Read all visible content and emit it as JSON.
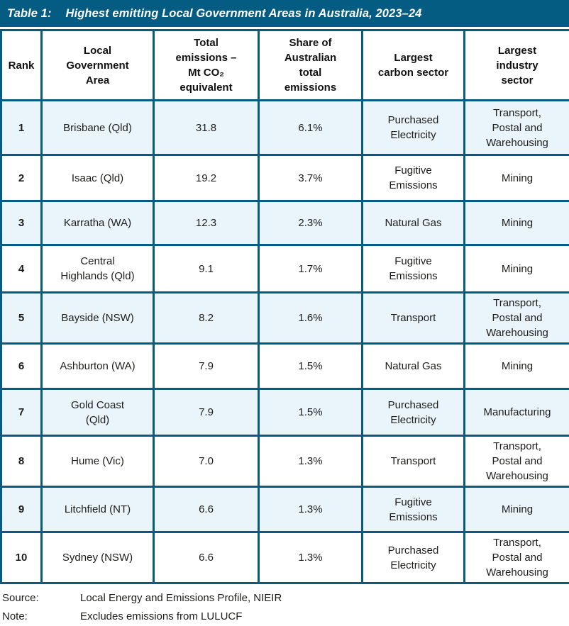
{
  "title": {
    "label": "Table 1:",
    "text": "Highest emitting Local Government Areas in Australia, 2023–24"
  },
  "colors": {
    "accent_teal": "#055C82",
    "alt_row_blue": "#E9F4FB",
    "title_text": "#FFFFFF",
    "body_text": "#1D1D1B"
  },
  "table": {
    "headers": [
      "Rank",
      "Local\nGovernment\nArea",
      "Total\nemissions –\nMt CO₂\nequivalent",
      "Share of\nAustralian\ntotal\nemissions",
      "Largest\ncarbon sector",
      "Largest\nindustry\nsector"
    ],
    "rows": [
      {
        "rank": "1",
        "lga": "Brisbane (Qld)",
        "emissions": "31.8",
        "share": "6.1%",
        "carbon_sector": "Purchased\nElectricity",
        "industry_sector": "Transport,\nPostal and\nWarehousing"
      },
      {
        "rank": "2",
        "lga": "Isaac (Qld)",
        "emissions": "19.2",
        "share": "3.7%",
        "carbon_sector": "Fugitive\nEmissions",
        "industry_sector": "Mining"
      },
      {
        "rank": "3",
        "lga": "Karratha (WA)",
        "emissions": "12.3",
        "share": "2.3%",
        "carbon_sector": "Natural Gas",
        "industry_sector": "Mining"
      },
      {
        "rank": "4",
        "lga": "Central\nHighlands (Qld)",
        "emissions": "9.1",
        "share": "1.7%",
        "carbon_sector": "Fugitive\nEmissions",
        "industry_sector": "Mining"
      },
      {
        "rank": "5",
        "lga": "Bayside (NSW)",
        "emissions": "8.2",
        "share": "1.6%",
        "carbon_sector": "Transport",
        "industry_sector": "Transport,\nPostal and\nWarehousing"
      },
      {
        "rank": "6",
        "lga": "Ashburton (WA)",
        "emissions": "7.9",
        "share": "1.5%",
        "carbon_sector": "Natural Gas",
        "industry_sector": "Mining"
      },
      {
        "rank": "7",
        "lga": "Gold Coast\n(Qld)",
        "emissions": "7.9",
        "share": "1.5%",
        "carbon_sector": "Purchased\nElectricity",
        "industry_sector": "Manufacturing"
      },
      {
        "rank": "8",
        "lga": "Hume (Vic)",
        "emissions": "7.0",
        "share": "1.3%",
        "carbon_sector": "Transport",
        "industry_sector": "Transport,\nPostal and\nWarehousing"
      },
      {
        "rank": "9",
        "lga": "Litchfield (NT)",
        "emissions": "6.6",
        "share": "1.3%",
        "carbon_sector": "Fugitive\nEmissions",
        "industry_sector": "Mining"
      },
      {
        "rank": "10",
        "lga": "Sydney (NSW)",
        "emissions": "6.6",
        "share": "1.3%",
        "carbon_sector": "Purchased\nElectricity",
        "industry_sector": "Transport,\nPostal and\nWarehousing"
      }
    ]
  },
  "footer": {
    "source_label": "Source:",
    "source_text": "Local Energy and Emissions Profile, NIEIR",
    "note_label": "Note:",
    "note_text": "Excludes emissions from LULUCF"
  },
  "chart_data": {
    "type": "table",
    "title": "Table 1: Highest emitting Local Government Areas in Australia, 2023–24",
    "columns": [
      "Rank",
      "Local Government Area",
      "Total emissions – Mt CO₂ equivalent",
      "Share of Australian total emissions",
      "Largest carbon sector",
      "Largest industry sector"
    ],
    "rows": [
      [
        1,
        "Brisbane (Qld)",
        31.8,
        "6.1%",
        "Purchased Electricity",
        "Transport, Postal and Warehousing"
      ],
      [
        2,
        "Isaac (Qld)",
        19.2,
        "3.7%",
        "Fugitive Emissions",
        "Mining"
      ],
      [
        3,
        "Karratha (WA)",
        12.3,
        "2.3%",
        "Natural Gas",
        "Mining"
      ],
      [
        4,
        "Central Highlands (Qld)",
        9.1,
        "1.7%",
        "Fugitive Emissions",
        "Mining"
      ],
      [
        5,
        "Bayside (NSW)",
        8.2,
        "1.6%",
        "Transport",
        "Transport, Postal and Warehousing"
      ],
      [
        6,
        "Ashburton (WA)",
        7.9,
        "1.5%",
        "Natural Gas",
        "Mining"
      ],
      [
        7,
        "Gold Coast (Qld)",
        7.9,
        "1.5%",
        "Purchased Electricity",
        "Manufacturing"
      ],
      [
        8,
        "Hume (Vic)",
        7.0,
        "1.3%",
        "Transport",
        "Transport, Postal and Warehousing"
      ],
      [
        9,
        "Litchfield (NT)",
        6.6,
        "1.3%",
        "Fugitive Emissions",
        "Mining"
      ],
      [
        10,
        "Sydney (NSW)",
        6.6,
        "1.3%",
        "Purchased Electricity",
        "Transport, Postal and Warehousing"
      ]
    ],
    "emissions_mt_co2e": [
      31.8,
      19.2,
      12.3,
      9.1,
      8.2,
      7.9,
      7.9,
      7.0,
      6.6,
      6.6
    ],
    "share_of_australian_total_pct": [
      6.1,
      3.7,
      2.3,
      1.7,
      1.6,
      1.5,
      1.5,
      1.3,
      1.3,
      1.3
    ],
    "source": "Local Energy and Emissions Profile, NIEIR",
    "note": "Excludes emissions from LULUCF"
  }
}
